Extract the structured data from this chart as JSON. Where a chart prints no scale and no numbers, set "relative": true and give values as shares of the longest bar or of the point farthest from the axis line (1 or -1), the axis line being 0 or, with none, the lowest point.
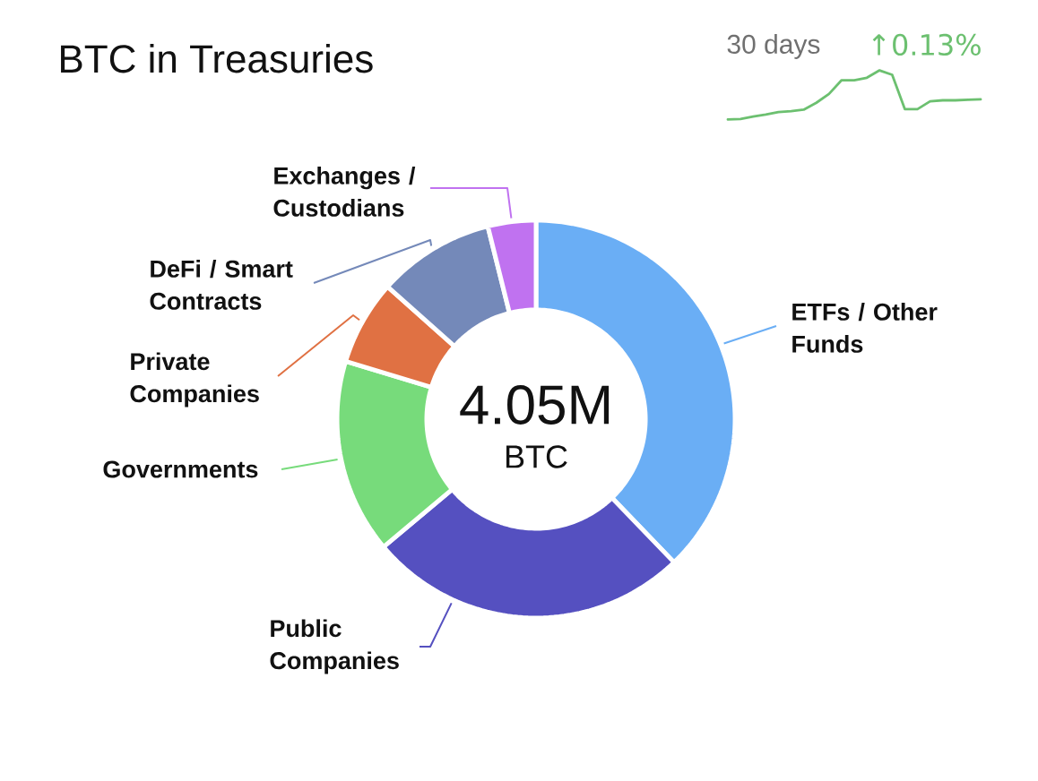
{
  "chart_data": [
    {
      "type": "donut",
      "title": "BTC in Treasuries",
      "categories": [
        "ETFs / Other Funds",
        "Public Companies",
        "Governments",
        "Private Companies",
        "DeFi / Smart Contracts",
        "Exchanges / Custodians"
      ],
      "values": [
        37.8,
        26.1,
        15.8,
        6.9,
        9.5,
        3.9
      ],
      "colors": [
        "#6aaef5",
        "#5550c0",
        "#77db7b",
        "#e07143",
        "#7489b9",
        "#c072f0"
      ],
      "annotations": [
        "4.05M",
        "BTC"
      ]
    },
    {
      "type": "line",
      "title": "30 days",
      "annotations": [
        "↑0.13%"
      ],
      "relative": true,
      "categories": [
        null,
        null,
        null,
        null,
        null,
        null,
        null,
        null,
        null,
        null,
        null,
        null,
        null,
        null,
        null,
        null,
        null,
        null,
        null,
        null,
        null
      ],
      "values": [
        0,
        0.01,
        0.06,
        0.1,
        0.15,
        0.17,
        0.2,
        0.34,
        0.52,
        0.8,
        0.8,
        0.85,
        1,
        0.91,
        0.21,
        0.21,
        0.37,
        0.39,
        0.39,
        0.4,
        0.41
      ],
      "color": "#6cc070"
    }
  ]
}
